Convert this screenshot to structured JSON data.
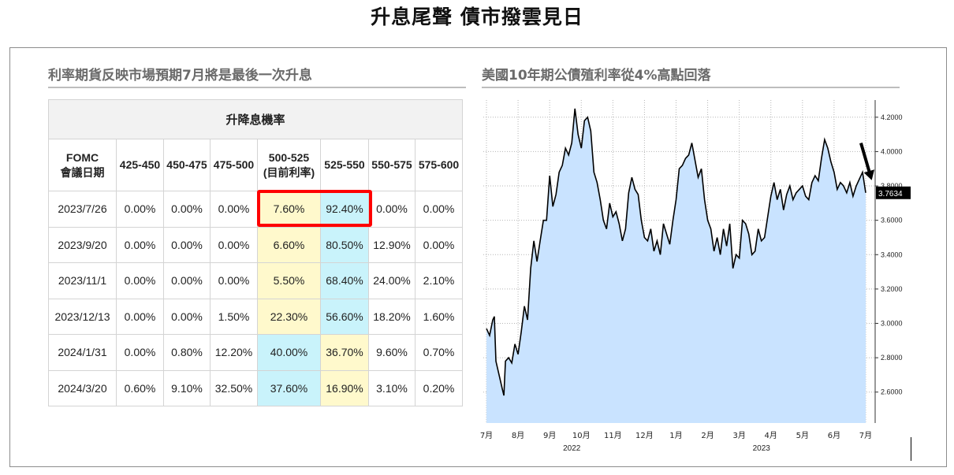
{
  "page": {
    "title": "升息尾聲  債市撥雲見日"
  },
  "left_panel": {
    "title": "利率期貨反映市場預期7月將是最後一次升息",
    "table": {
      "header": "升降息機率",
      "columns": [
        {
          "line1": "FOMC",
          "line2": "會議日期"
        },
        {
          "line1": "425-450",
          "line2": ""
        },
        {
          "line1": "450-475",
          "line2": ""
        },
        {
          "line1": "475-500",
          "line2": ""
        },
        {
          "line1": "500-525",
          "line2": "(目前利率)"
        },
        {
          "line1": "525-550",
          "line2": ""
        },
        {
          "line1": "550-575",
          "line2": ""
        },
        {
          "line1": "575-600",
          "line2": ""
        }
      ],
      "rows": [
        [
          "2023/7/26",
          "0.00%",
          "0.00%",
          "0.00%",
          "7.60%",
          "92.40%",
          "0.00%",
          "0.00%"
        ],
        [
          "2023/9/20",
          "0.00%",
          "0.00%",
          "0.00%",
          "6.60%",
          "80.50%",
          "12.90%",
          "0.00%"
        ],
        [
          "2023/11/1",
          "0.00%",
          "0.00%",
          "0.00%",
          "5.50%",
          "68.40%",
          "24.00%",
          "2.10%"
        ],
        [
          "2023/12/13",
          "0.00%",
          "0.00%",
          "1.50%",
          "22.30%",
          "56.60%",
          "18.20%",
          "1.60%"
        ],
        [
          "2024/1/31",
          "0.00%",
          "0.80%",
          "12.20%",
          "40.00%",
          "36.70%",
          "9.60%",
          "0.70%"
        ],
        [
          "2024/3/20",
          "0.60%",
          "9.10%",
          "32.50%",
          "37.60%",
          "16.90%",
          "3.10%",
          "0.20%"
        ]
      ],
      "highlight_row": 0,
      "cell_colors": {
        "yellow": "#fff9cc",
        "cyan": "#c9f3fb",
        "highlight_border": "#ff0000"
      }
    }
  },
  "right_panel": {
    "title": "美國10年期公債殖利率從4%高點回落"
  },
  "chart_data": {
    "type": "area",
    "title": "美國10年期公債殖利率從4%高點回落",
    "x_ticks": [
      "7月",
      "8月",
      "9月",
      "10月",
      "11月",
      "12月",
      "1月",
      "2月",
      "3月",
      "4月",
      "5月",
      "6月",
      "7月"
    ],
    "x_tick_pos": [
      0,
      1,
      2,
      3,
      4,
      5,
      6,
      7,
      8,
      9,
      10,
      11,
      12
    ],
    "year_labels": [
      {
        "label": "2022",
        "at": 2.7
      },
      {
        "label": "2023",
        "at": 8.7
      }
    ],
    "y_ticks": [
      "4.2000",
      "4.0000",
      "3.8000",
      "3.6000",
      "3.4000",
      "3.2000",
      "3.0000",
      "2.8000",
      "2.6000"
    ],
    "y_tick_values": [
      4.2,
      4.0,
      3.8,
      3.6,
      3.4,
      3.2,
      3.0,
      2.8,
      2.6
    ],
    "ylim": [
      2.42,
      4.3
    ],
    "xlim": [
      -0.1,
      12.3
    ],
    "last_value_label": "3.7634",
    "grid": true,
    "colors": {
      "fill": "#c9e3ff",
      "line": "#000000"
    },
    "x": [
      0.0,
      0.1,
      0.2,
      0.25,
      0.3,
      0.4,
      0.5,
      0.55,
      0.6,
      0.7,
      0.8,
      0.9,
      1.0,
      1.1,
      1.2,
      1.3,
      1.4,
      1.5,
      1.6,
      1.7,
      1.8,
      1.9,
      2.0,
      2.1,
      2.2,
      2.3,
      2.4,
      2.5,
      2.6,
      2.7,
      2.8,
      2.9,
      3.0,
      3.1,
      3.2,
      3.3,
      3.4,
      3.5,
      3.6,
      3.7,
      3.8,
      3.9,
      4.0,
      4.1,
      4.2,
      4.3,
      4.4,
      4.5,
      4.6,
      4.7,
      4.8,
      4.9,
      5.0,
      5.1,
      5.2,
      5.3,
      5.4,
      5.5,
      5.6,
      5.7,
      5.8,
      5.9,
      6.0,
      6.1,
      6.2,
      6.3,
      6.4,
      6.5,
      6.6,
      6.7,
      6.8,
      6.9,
      7.0,
      7.1,
      7.2,
      7.3,
      7.4,
      7.5,
      7.6,
      7.7,
      7.8,
      7.9,
      8.0,
      8.1,
      8.2,
      8.3,
      8.4,
      8.5,
      8.6,
      8.7,
      8.8,
      8.9,
      9.0,
      9.1,
      9.2,
      9.3,
      9.4,
      9.5,
      9.6,
      9.7,
      9.8,
      9.9,
      10.0,
      10.1,
      10.2,
      10.3,
      10.4,
      10.5,
      10.6,
      10.7,
      10.8,
      10.9,
      11.0,
      11.1,
      11.2,
      11.3,
      11.4,
      11.5,
      11.6,
      11.7,
      11.8,
      11.9,
      12.0
    ],
    "y": [
      2.97,
      2.93,
      3.02,
      3.04,
      2.78,
      2.7,
      2.62,
      2.58,
      2.78,
      2.8,
      2.77,
      2.88,
      2.82,
      2.95,
      3.1,
      3.02,
      3.32,
      3.48,
      3.36,
      3.48,
      3.6,
      3.6,
      3.86,
      3.68,
      3.75,
      3.88,
      3.92,
      4.02,
      3.98,
      4.05,
      4.25,
      4.1,
      4.02,
      4.18,
      4.2,
      4.12,
      3.88,
      3.82,
      3.72,
      3.6,
      3.55,
      3.7,
      3.62,
      3.65,
      3.58,
      3.48,
      3.55,
      3.76,
      3.85,
      3.78,
      3.75,
      3.6,
      3.5,
      3.48,
      3.55,
      3.42,
      3.48,
      3.4,
      3.58,
      3.52,
      3.46,
      3.6,
      3.72,
      3.9,
      3.92,
      3.96,
      3.98,
      4.05,
      3.95,
      3.85,
      3.9,
      3.72,
      3.6,
      3.55,
      3.42,
      3.5,
      3.4,
      3.55,
      3.45,
      3.58,
      3.32,
      3.4,
      3.38,
      3.6,
      3.58,
      3.52,
      3.4,
      3.42,
      3.55,
      3.48,
      3.5,
      3.62,
      3.74,
      3.82,
      3.72,
      3.78,
      3.66,
      3.75,
      3.8,
      3.72,
      3.76,
      3.78,
      3.8,
      3.74,
      3.72,
      3.82,
      3.86,
      3.83,
      3.96,
      4.07,
      4.02,
      3.94,
      3.88,
      3.78,
      3.82,
      3.8,
      3.76,
      3.82,
      3.74,
      3.8,
      3.84,
      3.88,
      3.76
    ]
  }
}
